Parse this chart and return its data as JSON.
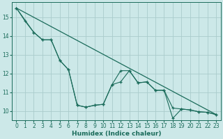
{
  "bg_color": "#cce8e8",
  "grid_color": "#aacccc",
  "line_color": "#1a6b5a",
  "marker_color": "#1a6b5a",
  "xlabel": "Humidex (Indice chaleur)",
  "xlim": [
    -0.5,
    23.5
  ],
  "ylim": [
    9.5,
    15.8
  ],
  "yticks": [
    10,
    11,
    12,
    13,
    14,
    15
  ],
  "xticks": [
    0,
    1,
    2,
    3,
    4,
    5,
    6,
    7,
    8,
    9,
    10,
    11,
    12,
    13,
    14,
    15,
    16,
    17,
    18,
    19,
    20,
    21,
    22,
    23
  ],
  "series_trend_x": [
    0,
    23
  ],
  "series_trend_y": [
    15.5,
    9.8
  ],
  "series1_x": [
    0,
    1,
    2,
    3,
    4,
    5,
    6,
    7,
    8,
    9,
    10,
    11,
    12,
    13,
    14,
    15,
    16,
    17,
    18,
    19,
    20,
    21,
    22,
    23
  ],
  "series1_y": [
    15.5,
    14.8,
    14.2,
    13.8,
    13.8,
    12.7,
    12.2,
    10.3,
    10.2,
    10.3,
    10.35,
    11.4,
    11.55,
    12.15,
    11.5,
    11.55,
    11.1,
    11.1,
    10.15,
    10.1,
    10.05,
    9.95,
    9.92,
    9.8
  ],
  "series2_x": [
    0,
    2,
    3,
    4,
    5,
    6,
    7,
    8,
    9,
    10,
    11,
    12,
    13,
    14,
    15,
    16,
    17,
    18,
    19,
    20,
    21,
    22,
    23
  ],
  "series2_y": [
    15.5,
    14.2,
    13.8,
    13.8,
    12.7,
    12.2,
    10.3,
    10.2,
    10.3,
    10.35,
    11.4,
    12.15,
    12.15,
    11.5,
    11.55,
    11.1,
    11.1,
    9.6,
    10.1,
    10.05,
    9.95,
    9.92,
    9.8
  ]
}
